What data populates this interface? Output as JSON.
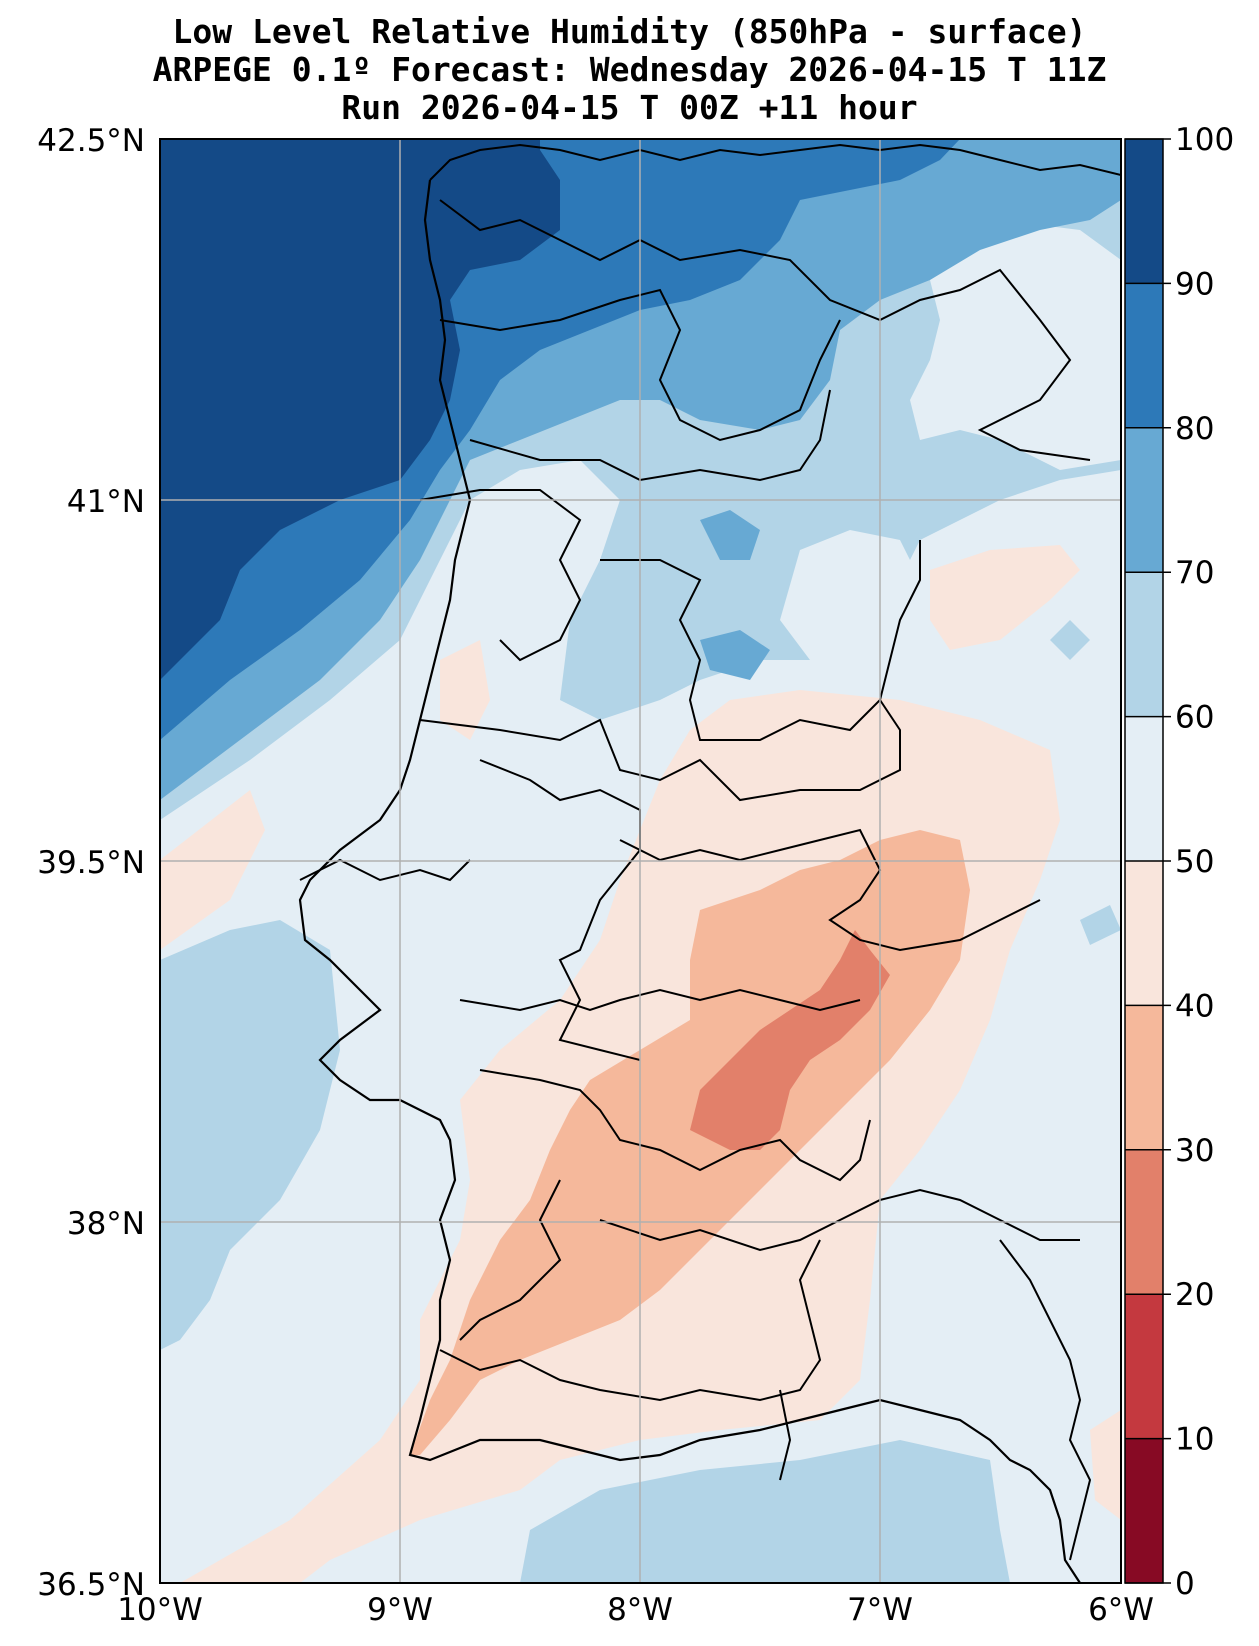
{
  "title": {
    "line1": "Low Level Relative Humidity (850hPa - surface)",
    "line2": "ARPEGE 0.1º Forecast: Wednesday 2026-04-15 T 11Z",
    "line3": "Run 2026-04-15 T 00Z +11 hour"
  },
  "map": {
    "lat_ticks": [
      "42.5°N",
      "41°N",
      "39.5°N",
      "38°N",
      "36.5°N"
    ],
    "lon_ticks": [
      "10°W",
      "9°W",
      "8°W",
      "7°W",
      "6°W"
    ],
    "extent": {
      "lon_min": -10,
      "lon_max": -6,
      "lat_min": 36.5,
      "lat_max": 42.5
    }
  },
  "colorbar": {
    "ticks": [
      "100",
      "90",
      "80",
      "70",
      "60",
      "50",
      "40",
      "30",
      "20",
      "10",
      "0"
    ],
    "levels": [
      {
        "range": "90-100",
        "color": "#144a87"
      },
      {
        "range": "80-90",
        "color": "#2d79b8"
      },
      {
        "range": "70-80",
        "color": "#67a9d3"
      },
      {
        "range": "60-70",
        "color": "#b2d4e7"
      },
      {
        "range": "50-60",
        "color": "#e4eef5"
      },
      {
        "range": "40-50",
        "color": "#f9e5dc"
      },
      {
        "range": "30-40",
        "color": "#f5b89b"
      },
      {
        "range": "20-30",
        "color": "#e2806a"
      },
      {
        "range": "10-20",
        "color": "#c4393f"
      },
      {
        "range": "0-10",
        "color": "#870a24"
      }
    ]
  }
}
